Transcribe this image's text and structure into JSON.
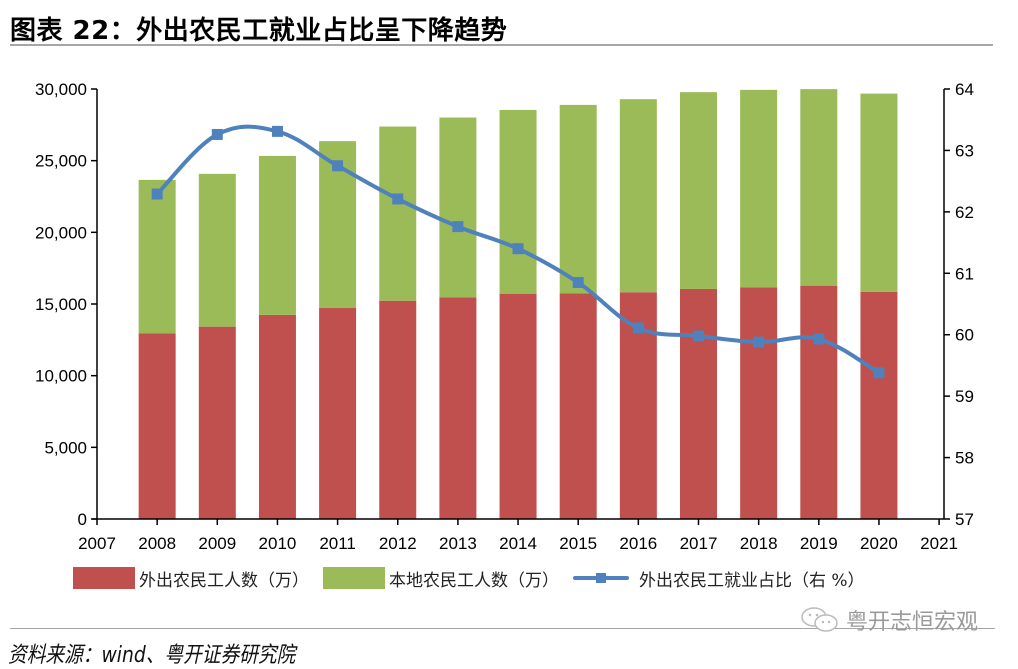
{
  "title": "图表 22：外出农民工就业占比呈下降趋势",
  "source": "资料来源：wind、粤开证券研究院",
  "watermark": "粤开志恒宏观",
  "colors": {
    "migrant": "#C0504D",
    "local": "#9BBB59",
    "share": "#4F81BD"
  },
  "chart_data": {
    "type": "bar",
    "stacked": true,
    "title": "外出农民工就业占比呈下降趋势",
    "xlabel": "",
    "ylabel": "",
    "x_ticks": [
      "2007",
      "2008",
      "2009",
      "2010",
      "2011",
      "2012",
      "2013",
      "2014",
      "2015",
      "2016",
      "2017",
      "2018",
      "2019",
      "2020",
      "2021"
    ],
    "categories": [
      "2008",
      "2009",
      "2010",
      "2011",
      "2012",
      "2013",
      "2014",
      "2015",
      "2016",
      "2017",
      "2018",
      "2019",
      "2020"
    ],
    "ylim": [
      0,
      30000
    ],
    "y_ticks": [
      "0",
      "5,000",
      "10,000",
      "15,000",
      "20,000",
      "25,000",
      "30,000"
    ],
    "y2lim": [
      57,
      64
    ],
    "y2_ticks": [
      "57",
      "58",
      "59",
      "60",
      "61",
      "62",
      "63",
      "64"
    ],
    "grid": false,
    "legend_position": "bottom",
    "series": [
      {
        "name": "外出农民工人数（万）",
        "type": "bar",
        "axis": "left",
        "values": [
          12960,
          13420,
          14240,
          14720,
          15230,
          15470,
          15720,
          15750,
          15820,
          16050,
          16170,
          16280,
          15840
        ]
      },
      {
        "name": "本地农民工人数（万）",
        "type": "bar",
        "axis": "left",
        "values": [
          10700,
          10660,
          11090,
          11640,
          12150,
          12540,
          12820,
          13140,
          13470,
          13730,
          13770,
          13710,
          13840
        ]
      },
      {
        "name": "外出农民工就业占比（右 %）",
        "type": "line",
        "axis": "right",
        "values": [
          62.29,
          63.26,
          63.31,
          62.75,
          62.21,
          61.76,
          61.4,
          60.85,
          60.11,
          59.98,
          59.88,
          59.93,
          59.38
        ]
      }
    ]
  }
}
